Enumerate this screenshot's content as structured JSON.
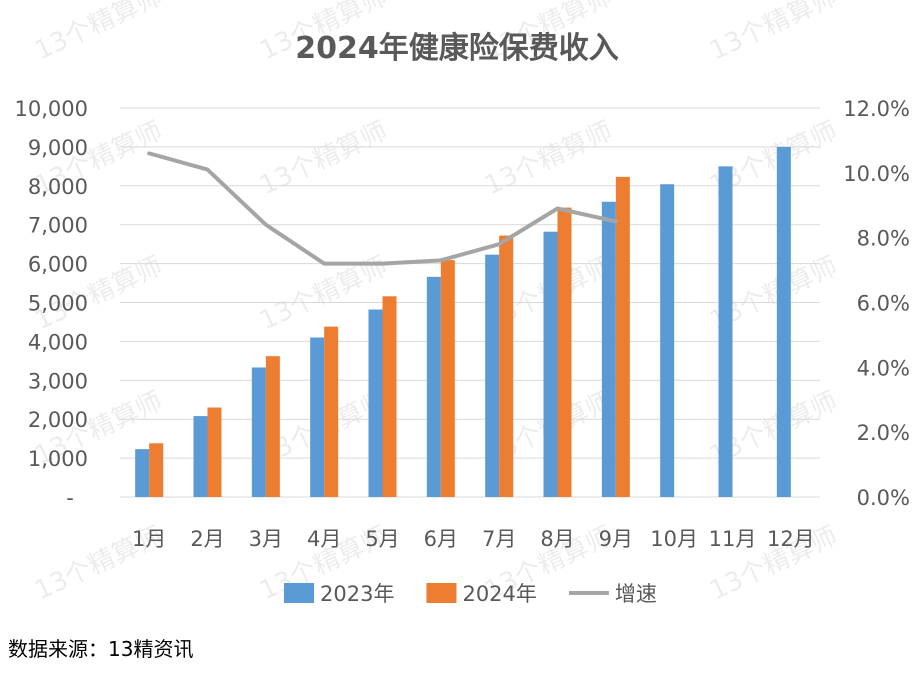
{
  "chart_data": {
    "type": "bar",
    "title": "2024年健康险保费收入",
    "categories": [
      "1月",
      "2月",
      "3月",
      "4月",
      "5月",
      "6月",
      "7月",
      "8月",
      "9月",
      "10月",
      "11月",
      "12月"
    ],
    "series": [
      {
        "name": "2023年",
        "type": "bar",
        "axis": "left",
        "color": "#5B9BD5",
        "values": [
          1230,
          2080,
          3330,
          4100,
          4820,
          5660,
          6230,
          6820,
          7590,
          8040,
          8500,
          9000
        ]
      },
      {
        "name": "2024年",
        "type": "bar",
        "axis": "left",
        "color": "#ED7D31",
        "values": [
          1380,
          2300,
          3620,
          4380,
          5160,
          6090,
          6720,
          7440,
          8230,
          null,
          null,
          null
        ]
      },
      {
        "name": "增速",
        "type": "line",
        "axis": "right",
        "color": "#A5A5A5",
        "values": [
          10.6,
          10.1,
          8.4,
          7.2,
          7.2,
          7.3,
          7.8,
          8.9,
          8.5,
          null,
          null,
          null
        ]
      }
    ],
    "left_axis": {
      "ticks": [
        0,
        1000,
        2000,
        3000,
        4000,
        5000,
        6000,
        7000,
        8000,
        9000,
        10000
      ],
      "tick_labels": [
        "-",
        "1,000",
        "2,000",
        "3,000",
        "4,000",
        "5,000",
        "6,000",
        "7,000",
        "8,000",
        "9,000",
        "10,000"
      ],
      "ylim": [
        0,
        10000
      ]
    },
    "right_axis": {
      "ticks": [
        0,
        2,
        4,
        6,
        8,
        10,
        12
      ],
      "tick_labels": [
        "0.0%",
        "2.0%",
        "4.0%",
        "6.0%",
        "8.0%",
        "10.0%",
        "12.0%"
      ],
      "ylim": [
        0,
        12
      ]
    },
    "grid": true,
    "legend_position": "bottom"
  },
  "source_text": "数据来源：13精资讯",
  "watermark_text": "13个精算师"
}
